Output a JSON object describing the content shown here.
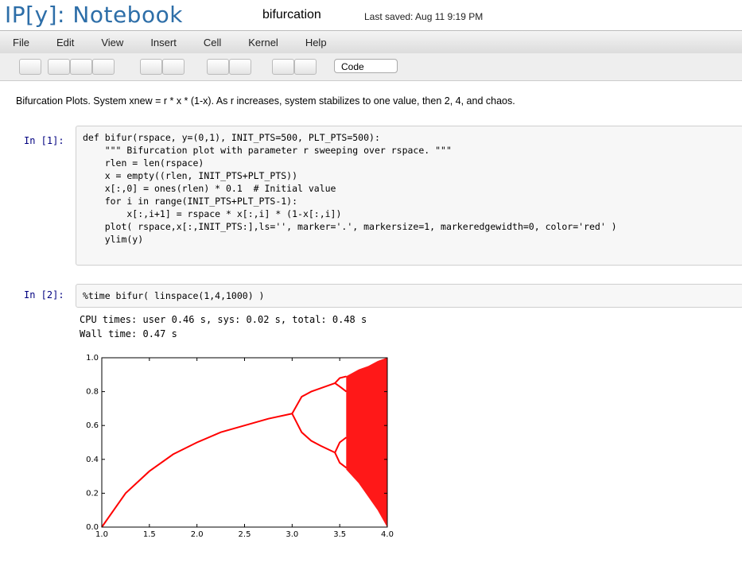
{
  "header": {
    "logo": "IP[y]: Notebook",
    "notebook_name": "bifurcation",
    "last_saved": "Last saved: Aug 11 9:19 PM"
  },
  "menu": [
    "File",
    "Edit",
    "View",
    "Insert",
    "Cell",
    "Kernel",
    "Help"
  ],
  "toolbar": {
    "cell_type": "Code"
  },
  "markdown": "Bifurcation Plots. System xnew = r * x * (1-x). As r increases, system stabilizes to one value, then 2, 4, and chaos.",
  "cells": [
    {
      "prompt": "In [1]:",
      "code": [
        "def bifur(rspace, y=(0,1), INIT_PTS=500, PLT_PTS=500):",
        "    \"\"\" Bifurcation plot with parameter r sweeping over rspace. \"\"\"",
        "    rlen = len(rspace)",
        "    x = empty((rlen, INIT_PTS+PLT_PTS))",
        "    x[:,0] = ones(rlen) * 0.1  # Initial value",
        "    for i in range(INIT_PTS+PLT_PTS-1):",
        "        x[:,i+1] = rspace * x[:,i] * (1-x[:,i])",
        "    plot( rspace,x[:,INIT_PTS:],ls='', marker='.', markersize=1, markeredgewidth=0, color='red' )",
        "    ylim(y)"
      ]
    },
    {
      "prompt": "In [2]:",
      "code": [
        "%time bifur( linspace(1,4,1000) )"
      ],
      "output": [
        "CPU times: user 0.46 s, sys: 0.02 s, total: 0.48 s",
        "Wall time: 0.47 s"
      ]
    }
  ],
  "chart_data": {
    "type": "bifurcation",
    "xlim": [
      1,
      4
    ],
    "ylim": [
      0,
      1
    ],
    "xticks": [
      {
        "value": 1,
        "label": "1.0"
      },
      1.5,
      {
        "value": 2,
        "label": "2.0"
      },
      2.5,
      {
        "value": 3,
        "label": "3.0"
      },
      3.5,
      {
        "value": 4,
        "label": "4.0"
      }
    ],
    "yticks": [
      {
        "value": 0,
        "label": "0.0"
      },
      0.2,
      0.4,
      0.6,
      0.8,
      {
        "value": 1,
        "label": "1.0"
      }
    ],
    "color": "#ff0000",
    "series": [
      {
        "x": [
          1,
          1.25,
          1.5,
          1.75,
          2,
          2.25,
          2.5,
          2.75,
          3
        ],
        "values": [
          0,
          0.2,
          0.33,
          0.43,
          0.5,
          0.56,
          0.6,
          0.64,
          0.67
        ]
      },
      {
        "x": [
          3,
          3.1,
          3.2,
          3.3,
          3.45
        ],
        "values": [
          0.67,
          0.77,
          0.8,
          0.82,
          0.85
        ]
      },
      {
        "x": [
          3,
          3.1,
          3.2,
          3.3,
          3.45
        ],
        "values": [
          0.67,
          0.56,
          0.51,
          0.48,
          0.44
        ]
      },
      {
        "x": [
          3.45,
          3.5,
          3.57
        ],
        "values": [
          0.85,
          0.88,
          0.89
        ]
      },
      {
        "x": [
          3.45,
          3.5,
          3.57
        ],
        "values": [
          0.85,
          0.83,
          0.8
        ]
      },
      {
        "x": [
          3.45,
          3.5,
          3.57
        ],
        "values": [
          0.44,
          0.5,
          0.53
        ]
      },
      {
        "x": [
          3.45,
          3.5,
          3.57
        ],
        "values": [
          0.44,
          0.38,
          0.35
        ]
      }
    ],
    "band": {
      "x": [
        3.57,
        3.7,
        3.8,
        3.9,
        4
      ],
      "upper": [
        0.89,
        0.93,
        0.95,
        0.98,
        1
      ],
      "lower": [
        0.34,
        0.26,
        0.18,
        0.1,
        0
      ]
    }
  }
}
